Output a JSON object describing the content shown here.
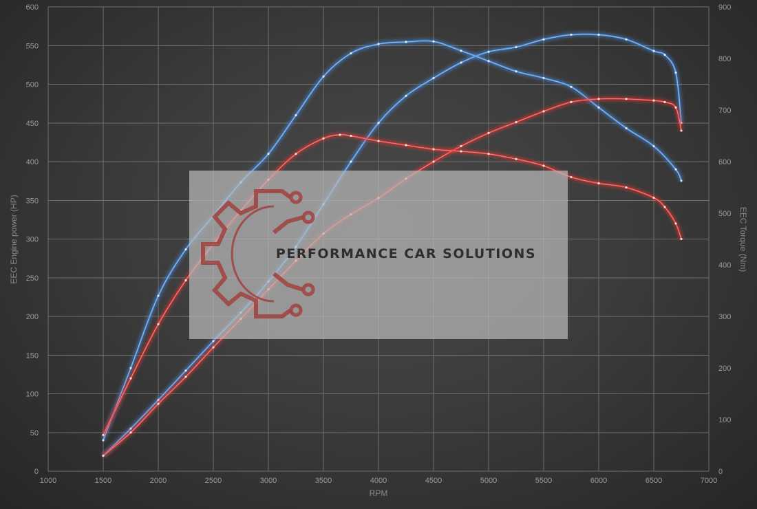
{
  "chart_data": {
    "type": "line",
    "xlabel": "RPM",
    "ylabel_left": "EEC Engine power (HP)",
    "ylabel_right": "EEC Torque (Nm)",
    "xlim": [
      1000,
      7000
    ],
    "ylim_left": [
      0,
      600
    ],
    "ylim_right": [
      0,
      900
    ],
    "grid": true,
    "x_ticks": [
      1000,
      1500,
      2000,
      2500,
      3000,
      3500,
      4000,
      4500,
      5000,
      5500,
      6000,
      6500,
      7000
    ],
    "y_ticks_left": [
      0,
      50,
      100,
      150,
      200,
      250,
      300,
      350,
      400,
      450,
      500,
      550,
      600
    ],
    "y_ticks_right": [
      0,
      100,
      200,
      300,
      400,
      500,
      600,
      700,
      800,
      900
    ],
    "series": [
      {
        "color": "#4a90e2",
        "axis": "left",
        "points": [
          [
            1500,
            20
          ],
          [
            1750,
            55
          ],
          [
            2000,
            92
          ],
          [
            2250,
            130
          ],
          [
            2500,
            168
          ],
          [
            2750,
            205
          ],
          [
            3000,
            245
          ],
          [
            3250,
            290
          ],
          [
            3500,
            345
          ],
          [
            3750,
            400
          ],
          [
            4000,
            450
          ],
          [
            4250,
            485
          ],
          [
            4500,
            508
          ],
          [
            4750,
            528
          ],
          [
            5000,
            542
          ],
          [
            5250,
            548
          ],
          [
            5500,
            558
          ],
          [
            5750,
            564
          ],
          [
            6000,
            564
          ],
          [
            6250,
            558
          ],
          [
            6500,
            543
          ],
          [
            6600,
            538
          ],
          [
            6700,
            515
          ],
          [
            6750,
            450
          ]
        ]
      },
      {
        "color": "#4a90e2",
        "axis": "right",
        "points": [
          [
            1500,
            60
          ],
          [
            1750,
            200
          ],
          [
            2000,
            340
          ],
          [
            2250,
            430
          ],
          [
            2500,
            495
          ],
          [
            2750,
            560
          ],
          [
            3000,
            615
          ],
          [
            3250,
            690
          ],
          [
            3500,
            765
          ],
          [
            3750,
            810
          ],
          [
            4000,
            828
          ],
          [
            4250,
            832
          ],
          [
            4500,
            833
          ],
          [
            4750,
            815
          ],
          [
            5000,
            795
          ],
          [
            5250,
            775
          ],
          [
            5500,
            762
          ],
          [
            5750,
            745
          ],
          [
            6000,
            705
          ],
          [
            6250,
            665
          ],
          [
            6500,
            630
          ],
          [
            6700,
            585
          ],
          [
            6750,
            563
          ]
        ]
      },
      {
        "color": "#e53935",
        "axis": "left",
        "points": [
          [
            1500,
            20
          ],
          [
            1750,
            50
          ],
          [
            2000,
            87
          ],
          [
            2250,
            122
          ],
          [
            2500,
            160
          ],
          [
            2750,
            197
          ],
          [
            3000,
            235
          ],
          [
            3250,
            272
          ],
          [
            3500,
            307
          ],
          [
            3750,
            332
          ],
          [
            4000,
            353
          ],
          [
            4250,
            378
          ],
          [
            4500,
            400
          ],
          [
            4750,
            420
          ],
          [
            5000,
            437
          ],
          [
            5250,
            451
          ],
          [
            5500,
            465
          ],
          [
            5750,
            477
          ],
          [
            6000,
            481
          ],
          [
            6250,
            481
          ],
          [
            6500,
            479
          ],
          [
            6600,
            477
          ],
          [
            6700,
            470
          ],
          [
            6750,
            440
          ]
        ]
      },
      {
        "color": "#e53935",
        "axis": "right",
        "points": [
          [
            1500,
            70
          ],
          [
            1750,
            180
          ],
          [
            2000,
            285
          ],
          [
            2250,
            370
          ],
          [
            2500,
            440
          ],
          [
            2750,
            505
          ],
          [
            3000,
            565
          ],
          [
            3250,
            615
          ],
          [
            3500,
            645
          ],
          [
            3650,
            652
          ],
          [
            3750,
            650
          ],
          [
            4000,
            640
          ],
          [
            4250,
            632
          ],
          [
            4500,
            624
          ],
          [
            4750,
            620
          ],
          [
            5000,
            615
          ],
          [
            5250,
            605
          ],
          [
            5500,
            592
          ],
          [
            5750,
            570
          ],
          [
            6000,
            558
          ],
          [
            6250,
            550
          ],
          [
            6500,
            530
          ],
          [
            6600,
            512
          ],
          [
            6700,
            480
          ],
          [
            6750,
            450
          ]
        ]
      }
    ]
  },
  "watermark": {
    "text": "PERFORMANCE CAR SOLUTIONS"
  }
}
